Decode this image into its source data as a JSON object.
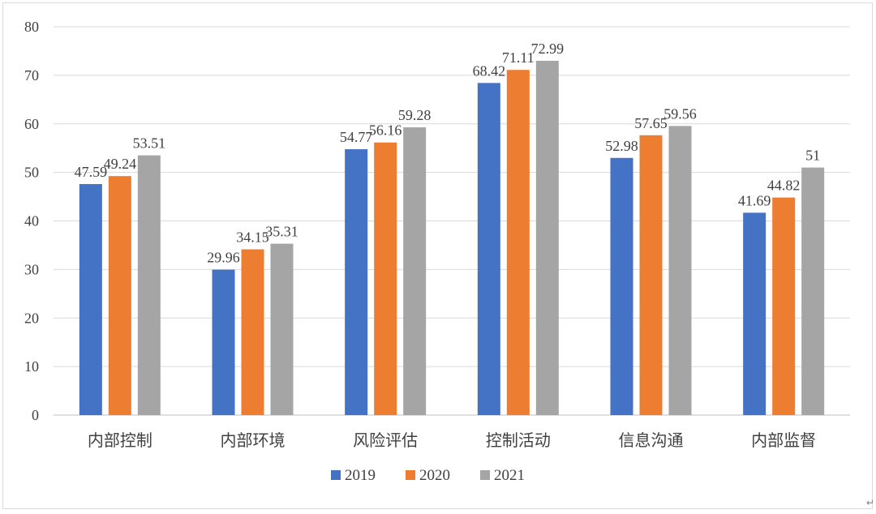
{
  "chart_data": {
    "type": "bar",
    "title": "",
    "xlabel": "",
    "ylabel": "",
    "ylim": [
      0,
      80
    ],
    "ytick_step": 10,
    "grid": true,
    "legend_position": "bottom",
    "categories": [
      "内部控制",
      "内部环境",
      "风险评估",
      "控制活动",
      "信息沟通",
      "内部监督"
    ],
    "series": [
      {
        "name": "2019",
        "color": "#4472c4",
        "values": [
          47.59,
          29.96,
          54.77,
          68.42,
          52.98,
          41.69
        ],
        "labels": [
          "47.59",
          "29.96",
          "54.77",
          "68.42",
          "52.98",
          "41.69"
        ]
      },
      {
        "name": "2020",
        "color": "#ed7d31",
        "values": [
          49.24,
          34.15,
          56.16,
          71.11,
          57.65,
          44.82
        ],
        "labels": [
          "49.24",
          "34.15",
          "56.16",
          "71.11",
          "57.65",
          "44.82"
        ]
      },
      {
        "name": "2021",
        "color": "#a5a5a5",
        "values": [
          53.51,
          35.31,
          59.28,
          72.99,
          59.56,
          51
        ],
        "labels": [
          "53.51",
          "35.31",
          "59.28",
          "72.99",
          "59.56",
          "51"
        ]
      }
    ]
  }
}
